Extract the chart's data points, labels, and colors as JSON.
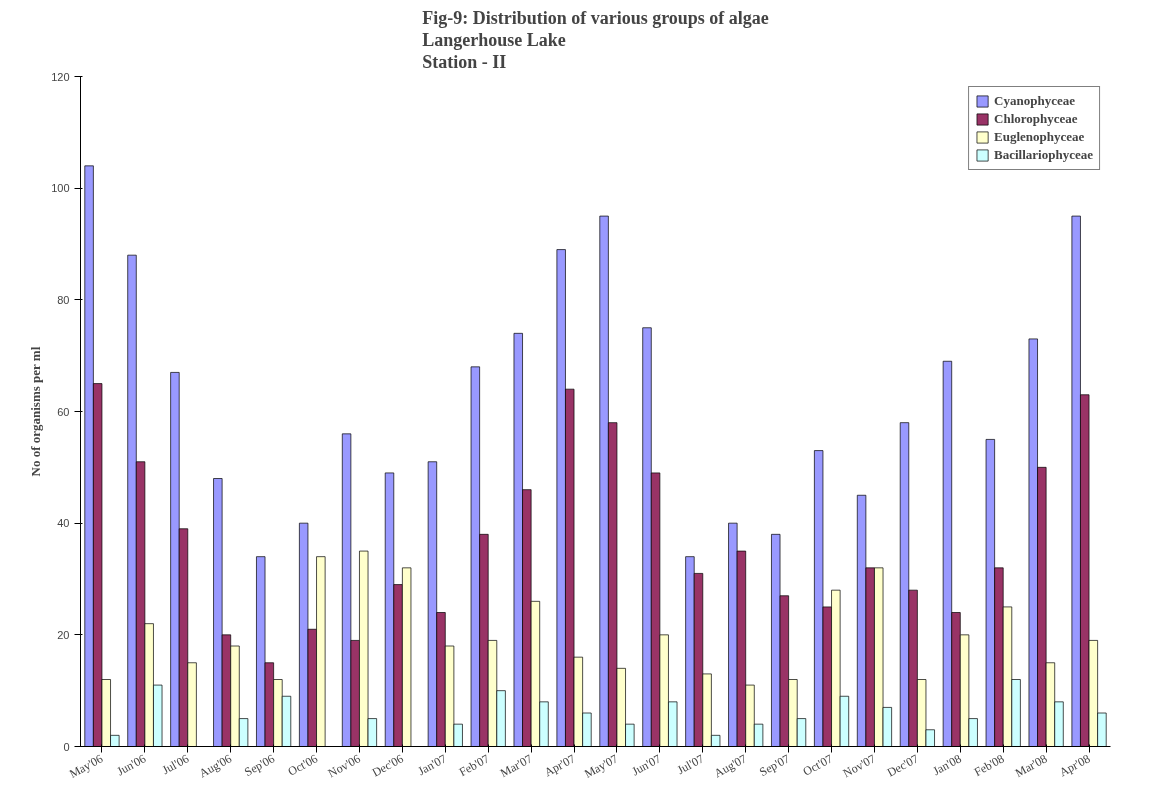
{
  "chart_data": {
    "type": "bar",
    "title": "Fig-9: Distribution of various groups of algae\nLangerhouse Lake\nStation - II",
    "ylabel": "No of organisms per ml",
    "categories": [
      "May'06",
      "Jun'06",
      "Jul'06",
      "Aug'06",
      "Sep'06",
      "Oct'06",
      "Nov'06",
      "Dec'06",
      "Jan'07",
      "Feb'07",
      "Mar'07",
      "Apr'07",
      "May'07",
      "Jun'07",
      "Jul'07",
      "Aug'07",
      "Sep'07",
      "Oct'07",
      "Nov'07",
      "Dec'07",
      "Jan'08",
      "Feb'08",
      "Mar'08",
      "Apr'08"
    ],
    "series": [
      {
        "name": "Cyanophyceae",
        "color": "#9999ff",
        "values": [
          104,
          88,
          67,
          48,
          34,
          40,
          56,
          49,
          51,
          68,
          74,
          89,
          95,
          75,
          34,
          40,
          38,
          53,
          45,
          58,
          69,
          55,
          73,
          95
        ]
      },
      {
        "name": "Chlorophyceae",
        "color": "#993366",
        "values": [
          65,
          51,
          39,
          20,
          15,
          21,
          19,
          29,
          24,
          38,
          46,
          64,
          58,
          49,
          31,
          35,
          27,
          25,
          32,
          28,
          24,
          32,
          50,
          63
        ]
      },
      {
        "name": "Euglenophyceae",
        "color": "#ffffcc",
        "values": [
          12,
          22,
          15,
          18,
          12,
          34,
          35,
          32,
          18,
          19,
          26,
          16,
          14,
          20,
          13,
          11,
          12,
          28,
          32,
          12,
          20,
          25,
          15,
          19
        ]
      },
      {
        "name": "Bacillariophyceae",
        "color": "#ccffff",
        "values": [
          2,
          11,
          null,
          5,
          9,
          null,
          5,
          null,
          4,
          10,
          8,
          6,
          4,
          8,
          2,
          4,
          5,
          9,
          7,
          3,
          5,
          12,
          8,
          6
        ]
      }
    ],
    "ylim": [
      0,
      120
    ],
    "yticks": [
      0,
      20,
      40,
      60,
      80,
      100,
      120
    ],
    "grid": false,
    "legend": "top right"
  }
}
